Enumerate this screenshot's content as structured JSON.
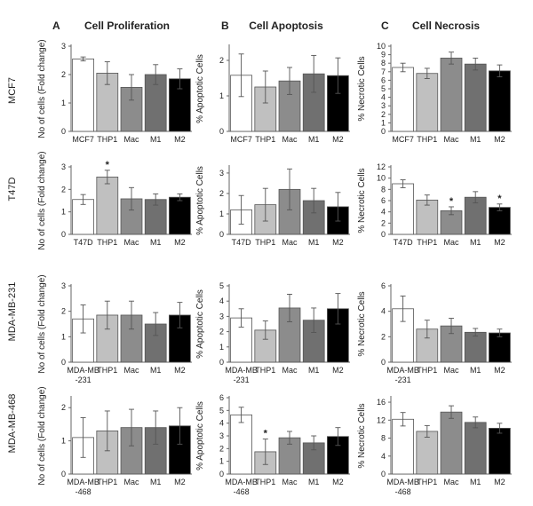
{
  "figure": {
    "panel_letters": [
      "A",
      "B",
      "C"
    ],
    "column_titles": [
      "Cell Proliferation",
      "Cell Apoptosis",
      "Cell Necrosis"
    ],
    "row_labels": [
      "MCF7",
      "T47D",
      "MDA-MB-231",
      "MDA-MB-468"
    ]
  },
  "bar_colors": [
    "#ffffff",
    "#c0c0c0",
    "#8c8c8c",
    "#707070",
    "#000000"
  ],
  "chart_data": [
    {
      "type": "bar",
      "ylabel": "No of cells (Fold change)",
      "ylim": [
        0,
        3
      ],
      "yticks": [
        "0",
        "1",
        "2",
        "3"
      ],
      "categories": [
        "MCF7",
        "THP1",
        "Mac",
        "M1",
        "M2"
      ],
      "values": [
        2.55,
        2.05,
        1.55,
        2.0,
        1.85
      ],
      "errors": [
        0.07,
        0.4,
        0.45,
        0.35,
        0.35
      ],
      "sig": [
        false,
        false,
        false,
        false,
        false
      ]
    },
    {
      "type": "bar",
      "ylabel": "% Apoptotic Cells",
      "ylim": [
        0,
        2.4
      ],
      "yticks": [
        "0",
        "1",
        "2"
      ],
      "categories": [
        "MCF7",
        "THP1",
        "Mac",
        "M1",
        "M2"
      ],
      "values": [
        1.58,
        1.25,
        1.42,
        1.62,
        1.57
      ],
      "errors": [
        0.6,
        0.45,
        0.38,
        0.52,
        0.5
      ],
      "sig": [
        false,
        false,
        false,
        false,
        false
      ]
    },
    {
      "type": "bar",
      "ylabel": "% Necrotic Cells",
      "ylim": [
        0,
        10
      ],
      "yticks": [
        "0",
        "1",
        "2",
        "3",
        "4",
        "5",
        "6",
        "7",
        "8",
        "9",
        "10"
      ],
      "categories": [
        "MCF7",
        "THP1",
        "Mac",
        "M1",
        "M2"
      ],
      "values": [
        7.5,
        6.8,
        8.6,
        7.9,
        7.1
      ],
      "errors": [
        0.5,
        0.6,
        0.7,
        0.7,
        0.7
      ],
      "sig": [
        false,
        false,
        false,
        false,
        false
      ]
    },
    {
      "type": "bar",
      "ylabel": "No of cells (Fold change)",
      "ylim": [
        0,
        3
      ],
      "yticks": [
        "0",
        "1",
        "2",
        "3"
      ],
      "categories": [
        "T47D",
        "THP1",
        "Mac",
        "M1",
        "M2"
      ],
      "values": [
        1.55,
        2.55,
        1.58,
        1.55,
        1.65
      ],
      "errors": [
        0.22,
        0.3,
        0.5,
        0.25,
        0.15
      ],
      "sig": [
        false,
        true,
        false,
        false,
        false
      ]
    },
    {
      "type": "bar",
      "ylabel": "% Apoptotic Cells",
      "ylim": [
        0,
        3.3
      ],
      "yticks": [
        "0",
        "1",
        "2",
        "3"
      ],
      "categories": [
        "T47D",
        "THP1",
        "Mac",
        "M1",
        "M2"
      ],
      "values": [
        1.2,
        1.45,
        2.2,
        1.65,
        1.35
      ],
      "errors": [
        0.7,
        0.8,
        1.0,
        0.6,
        0.7
      ],
      "sig": [
        false,
        false,
        false,
        false,
        false
      ]
    },
    {
      "type": "bar",
      "ylabel": "% Necrotic Cells",
      "ylim": [
        0,
        12
      ],
      "yticks": [
        "0",
        "2",
        "4",
        "6",
        "8",
        "10",
        "12"
      ],
      "categories": [
        "T47D",
        "THP1",
        "Mac",
        "M1",
        "M2"
      ],
      "values": [
        9.0,
        6.1,
        4.2,
        6.6,
        4.8
      ],
      "errors": [
        0.7,
        0.9,
        0.7,
        1.0,
        0.6
      ],
      "sig": [
        false,
        false,
        true,
        false,
        true
      ]
    },
    {
      "type": "bar",
      "ylabel": "No of cells (Fold change)",
      "ylim": [
        0,
        3
      ],
      "yticks": [
        "0",
        "1",
        "2",
        "3"
      ],
      "categories": [
        "MDA-MB-231",
        "THP1",
        "Mac",
        "M1",
        "M2"
      ],
      "values": [
        1.7,
        1.85,
        1.85,
        1.5,
        1.85
      ],
      "errors": [
        0.55,
        0.55,
        0.55,
        0.45,
        0.5
      ],
      "sig": [
        false,
        false,
        false,
        false,
        false
      ]
    },
    {
      "type": "bar",
      "ylabel": "% Apoptotic Cells",
      "ylim": [
        0,
        5
      ],
      "yticks": [
        "0",
        "1",
        "2",
        "3",
        "4",
        "5"
      ],
      "categories": [
        "MDA-MB-231",
        "THP1",
        "Mac",
        "M1",
        "M2"
      ],
      "values": [
        2.9,
        2.1,
        3.55,
        2.75,
        3.5
      ],
      "errors": [
        0.6,
        0.6,
        0.9,
        0.8,
        1.0
      ],
      "sig": [
        false,
        false,
        false,
        false,
        false
      ]
    },
    {
      "type": "bar",
      "ylabel": "% Necrotic Cells",
      "ylim": [
        0,
        6
      ],
      "yticks": [
        "0",
        "2",
        "4",
        "6"
      ],
      "categories": [
        "MDA-MB-231",
        "THP1",
        "Mac",
        "M1",
        "M2"
      ],
      "values": [
        4.2,
        2.6,
        2.85,
        2.35,
        2.3
      ],
      "errors": [
        1.0,
        0.7,
        0.6,
        0.3,
        0.3
      ],
      "sig": [
        false,
        false,
        false,
        false,
        false
      ]
    },
    {
      "type": "bar",
      "ylabel": "No of cells (Fold change)",
      "ylim": [
        0,
        2.3
      ],
      "yticks": [
        "0",
        "1",
        "2"
      ],
      "categories": [
        "MDA-MB-468",
        "THP1",
        "Mac",
        "M1",
        "M2"
      ],
      "values": [
        1.1,
        1.3,
        1.4,
        1.4,
        1.45
      ],
      "errors": [
        0.6,
        0.6,
        0.55,
        0.5,
        0.55
      ],
      "sig": [
        false,
        false,
        false,
        false,
        false
      ]
    },
    {
      "type": "bar",
      "ylabel": "% Apoptotic Cells",
      "ylim": [
        0,
        6
      ],
      "yticks": [
        "0",
        "1",
        "2",
        "3",
        "4",
        "5",
        "6"
      ],
      "categories": [
        "MDA-MB-468",
        "THP1",
        "Mac",
        "M1",
        "M2"
      ],
      "values": [
        4.65,
        1.75,
        2.85,
        2.45,
        2.95
      ],
      "errors": [
        0.6,
        1.0,
        0.5,
        0.55,
        0.7
      ],
      "sig": [
        false,
        true,
        false,
        false,
        false
      ]
    },
    {
      "type": "bar",
      "ylabel": "% Necrotic Cells",
      "ylim": [
        0,
        17
      ],
      "yticks": [
        "0",
        "4",
        "8",
        "12",
        "16"
      ],
      "categories": [
        "MDA-MB-468",
        "THP1",
        "Mac",
        "M1",
        "M2"
      ],
      "values": [
        12.2,
        9.5,
        13.8,
        11.5,
        10.2
      ],
      "errors": [
        1.5,
        1.3,
        1.4,
        1.2,
        1.1
      ],
      "sig": [
        false,
        false,
        false,
        false,
        false
      ]
    }
  ]
}
